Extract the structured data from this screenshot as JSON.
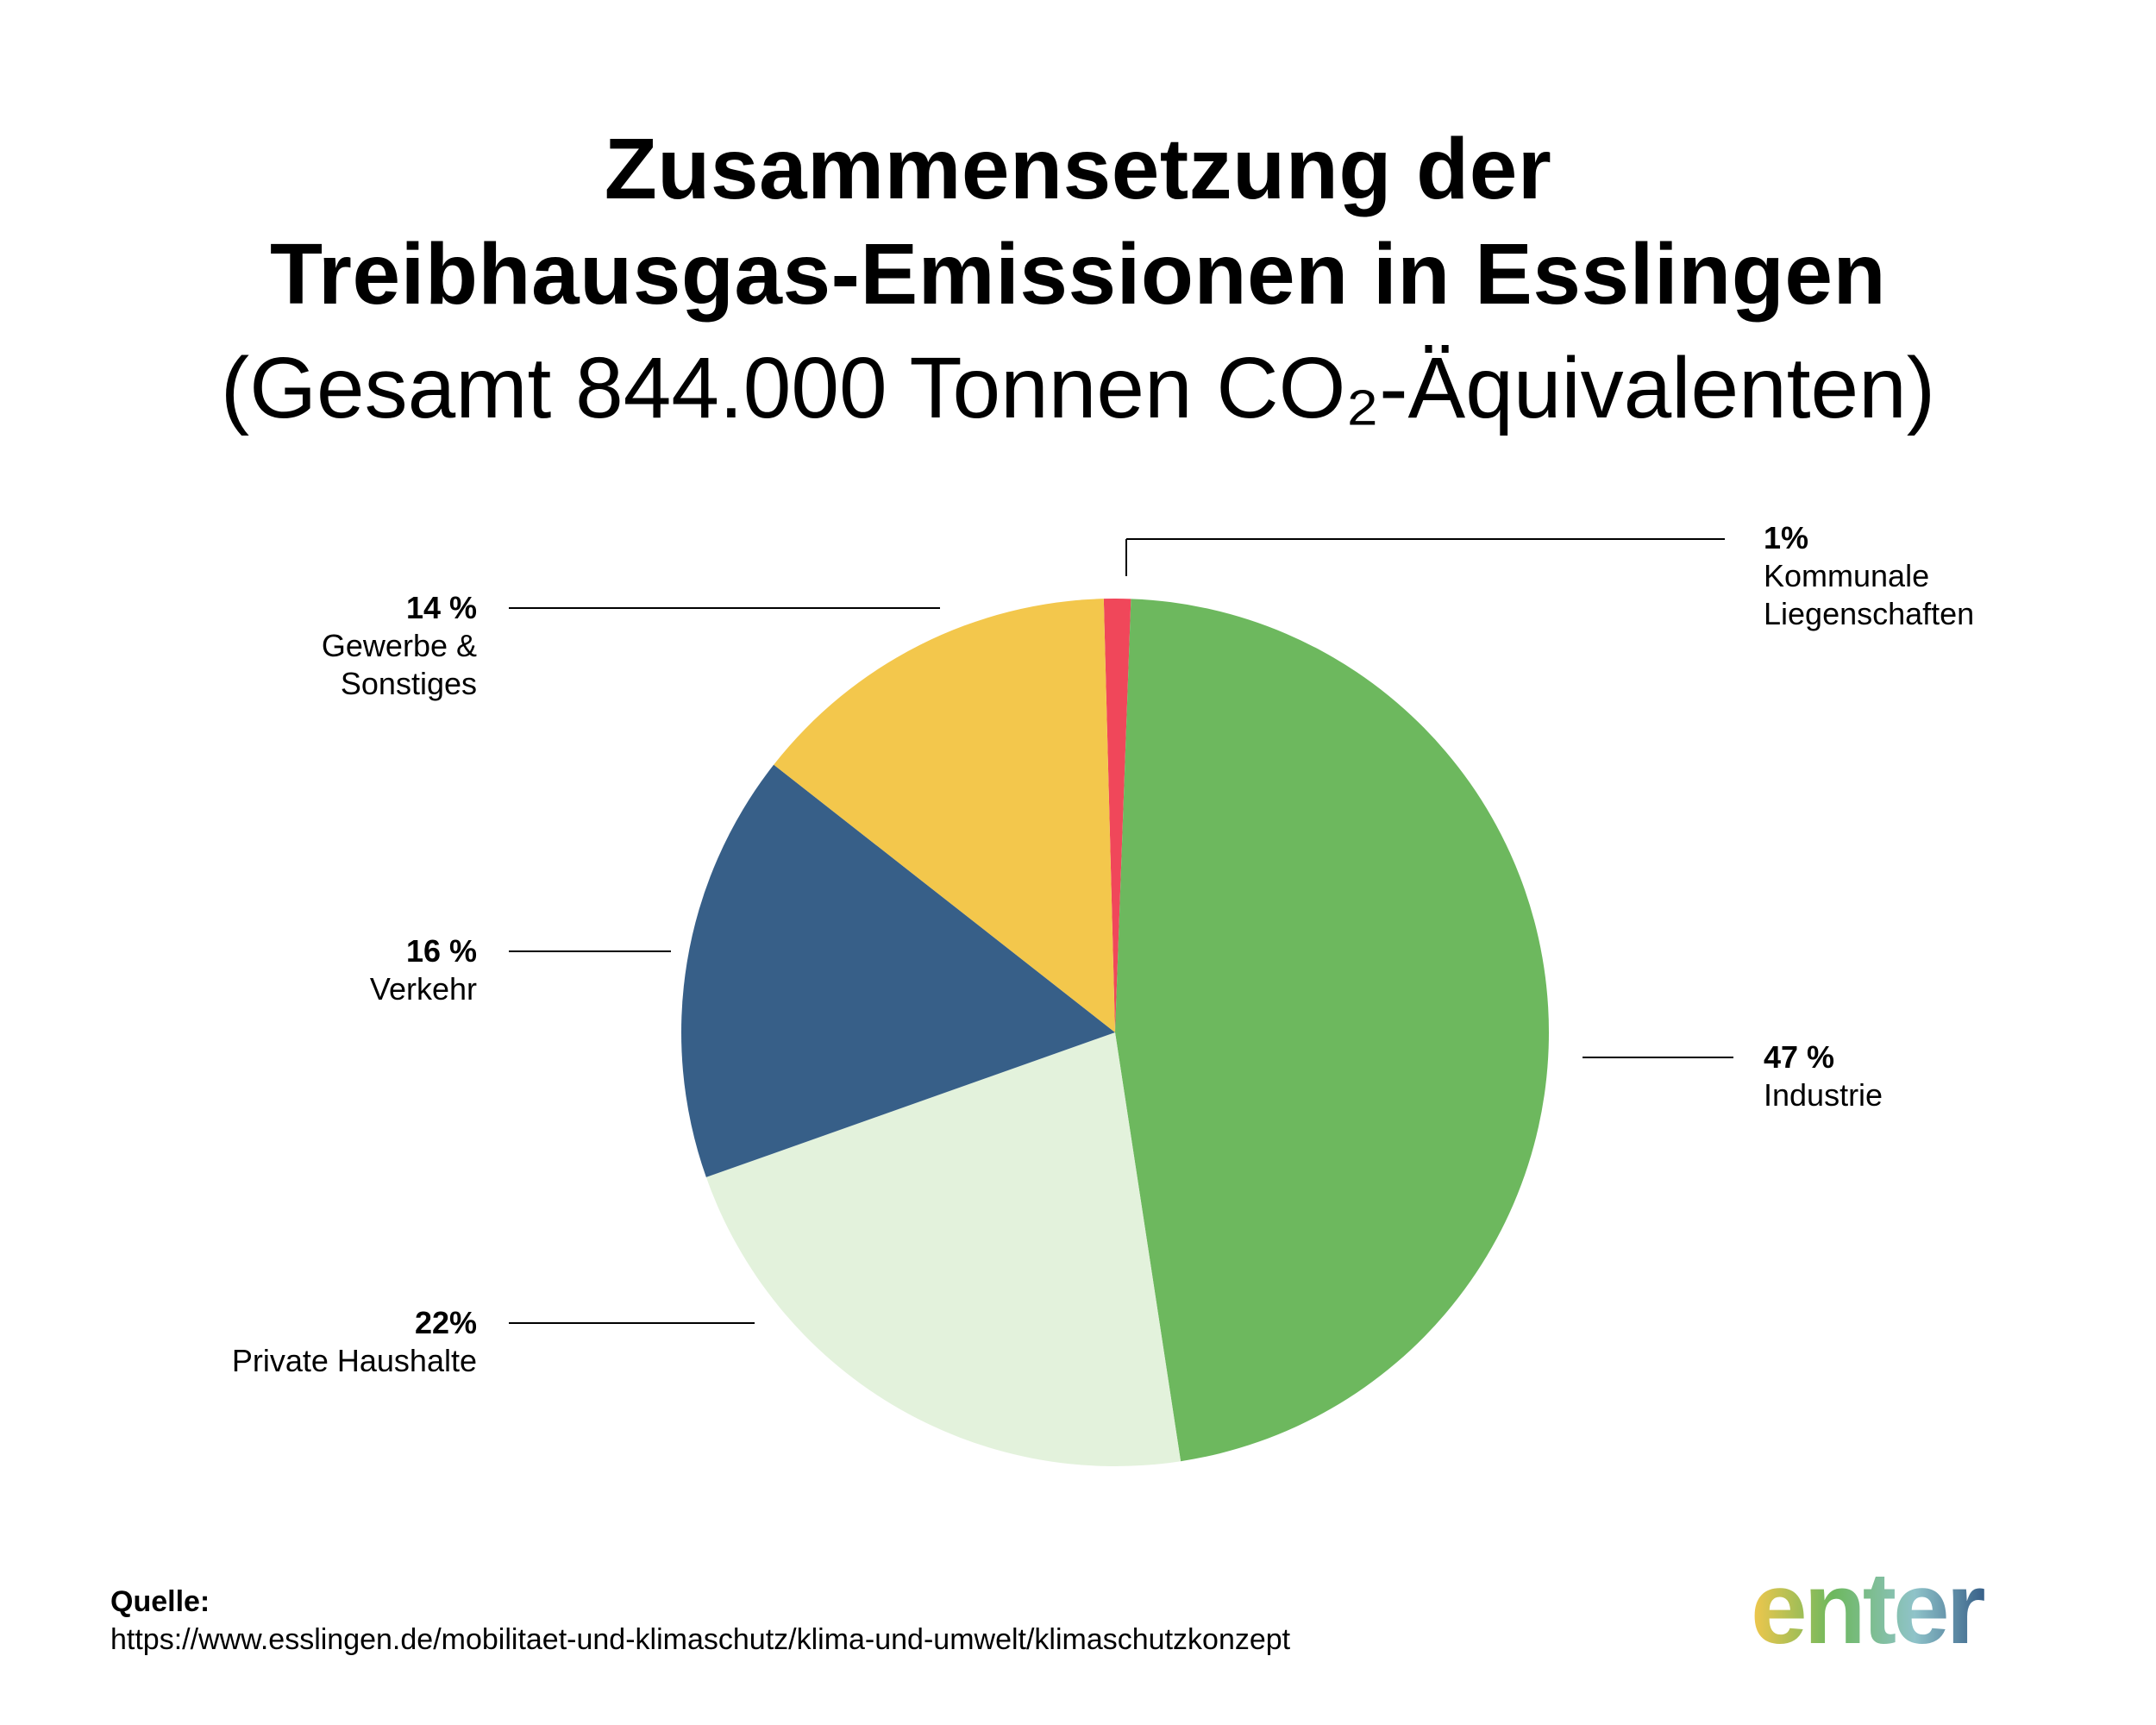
{
  "title_line1": "Zusammensetzung der",
  "title_line2": "Treibhausgas-Emissionen in Esslingen",
  "subtitle": "(Gesamt 844.000 Tonnen CO₂-Äquivalenten)",
  "chart_data": {
    "type": "pie",
    "slices": [
      {
        "label": "Kommunale Liegenschaften",
        "value_label": "1%",
        "value": 1,
        "color": "#f0475a"
      },
      {
        "label": "Industrie",
        "value_label": "47 %",
        "value": 47,
        "color": "#6db85e"
      },
      {
        "label": "Private Haushalte",
        "value_label": "22%",
        "value": 22,
        "color": "#e3f2dc"
      },
      {
        "label": "Verkehr",
        "value_label": "16 %",
        "value": 16,
        "color": "#375f88"
      },
      {
        "label": "Gewerbe & Sonstiges",
        "value_label": "14 %",
        "value": 14,
        "color": "#f3c74c"
      }
    ]
  },
  "labels": {
    "kommunal": {
      "pct": "1%",
      "name": "Kommunale\nLiegenschaften"
    },
    "industrie": {
      "pct": "47 %",
      "name": "Industrie"
    },
    "haushalte": {
      "pct": "22%",
      "name": "Private Haushalte"
    },
    "verkehr": {
      "pct": "16 %",
      "name": "Verkehr"
    },
    "gewerbe": {
      "pct": "14 %",
      "name": "Gewerbe &\nSonstiges"
    }
  },
  "source": {
    "title": "Quelle:",
    "url": "https://www.esslingen.de/mobilitaet-und-klimaschutz/klima-und-umwelt/klimaschutzkonzept"
  },
  "logo": {
    "text": "enter",
    "colors": [
      "#f3c74c",
      "#6db85e",
      "#8fc3c9",
      "#375f88"
    ]
  }
}
